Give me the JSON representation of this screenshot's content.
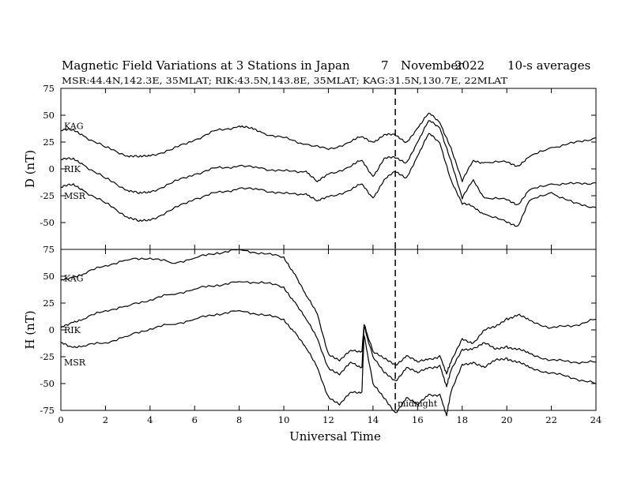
{
  "title": {
    "main": "Magnetic Field Variations at 3 Stations in Japan",
    "day": "7",
    "month": "November",
    "year": "2022",
    "averaging": "10-s averages"
  },
  "subtitle": "MSR:44.4N,142.3E, 35MLAT;  RIK:43.5N,143.8E, 35MLAT;  KAG:31.5N,130.7E, 22MLAT",
  "x_axis": {
    "label": "Universal Time"
  },
  "annotation": {
    "text": "midnight",
    "x": 15
  },
  "chart_data": [
    {
      "type": "line",
      "panel": "D",
      "ylabel": "D (nT)",
      "xlim": [
        0,
        24
      ],
      "ylim": [
        -75,
        75
      ],
      "xticks": [
        0,
        2,
        4,
        6,
        8,
        10,
        12,
        14,
        16,
        18,
        20,
        22,
        24
      ],
      "yticks": [
        75,
        50,
        25,
        0,
        -25,
        -50,
        -75
      ],
      "marker_x": 15,
      "series": [
        {
          "name": "KAG",
          "label_value": 40,
          "x": [
            0,
            0.5,
            1,
            2,
            3,
            3.5,
            4,
            5,
            6,
            7,
            8,
            8.5,
            9,
            10,
            11,
            12,
            13,
            13.5,
            14,
            14.5,
            15,
            15.5,
            16,
            16.5,
            17,
            17.5,
            18,
            18.5,
            19,
            20,
            20.5,
            21,
            22,
            23,
            24
          ],
          "y": [
            36,
            36,
            31,
            20,
            12,
            11,
            12,
            18,
            27,
            36,
            40,
            38,
            34,
            29,
            23,
            18,
            25,
            30,
            25,
            32,
            31,
            25,
            38,
            52,
            43,
            20,
            -12,
            8,
            6,
            6,
            3,
            11,
            20,
            24,
            29
          ]
        },
        {
          "name": "RIK",
          "label_value": 0,
          "x": [
            0,
            0.5,
            1,
            2,
            3,
            3.5,
            4,
            5,
            6,
            7,
            8,
            9,
            10,
            11,
            11.5,
            12,
            13,
            13.5,
            14,
            14.5,
            15,
            15.5,
            16,
            16.5,
            17,
            17.5,
            18,
            18.5,
            19,
            20,
            20.5,
            21,
            22,
            23,
            24
          ],
          "y": [
            9,
            9,
            4,
            -9,
            -20,
            -23,
            -22,
            -13,
            -5,
            1,
            3,
            1,
            -2,
            -2,
            -12,
            -5,
            2,
            8,
            -7,
            10,
            10,
            6,
            25,
            45,
            38,
            8,
            -28,
            -10,
            -27,
            -29,
            -33,
            -20,
            -14,
            -14,
            -13
          ]
        },
        {
          "name": "MSR",
          "label_value": -25,
          "x": [
            0,
            0.5,
            1,
            2,
            3,
            3.5,
            4,
            5,
            6,
            7,
            8,
            9,
            10,
            11,
            11.5,
            12,
            13,
            13.5,
            14,
            14.5,
            15,
            15.5,
            16,
            16.5,
            17,
            17.5,
            18,
            18.5,
            19,
            20,
            20.5,
            21,
            22,
            23,
            24
          ],
          "y": [
            -17,
            -15,
            -20,
            -32,
            -45,
            -49,
            -48,
            -38,
            -28,
            -22,
            -18,
            -19,
            -23,
            -23,
            -30,
            -26,
            -20,
            -14,
            -27,
            -10,
            -3,
            -8,
            12,
            33,
            24,
            -10,
            -33,
            -35,
            -42,
            -50,
            -53,
            -30,
            -22,
            -32,
            -36
          ]
        }
      ]
    },
    {
      "type": "line",
      "panel": "H",
      "ylabel": "H (nT)",
      "xlim": [
        0,
        24
      ],
      "ylim": [
        -75,
        75
      ],
      "xticks": [
        0,
        2,
        4,
        6,
        8,
        10,
        12,
        14,
        16,
        18,
        20,
        22,
        24
      ],
      "yticks": [
        75,
        50,
        25,
        0,
        -25,
        -50,
        -75
      ],
      "marker_x": 15,
      "series": [
        {
          "name": "KAG",
          "label_value": 48,
          "x": [
            0,
            0.5,
            1,
            2,
            3,
            4,
            5,
            6,
            7,
            8,
            9,
            10,
            10.5,
            11,
            11.5,
            12,
            12.5,
            13,
            13.5,
            13.6,
            14,
            14.5,
            15,
            15.5,
            16,
            16.5,
            17,
            17.3,
            17.5,
            18,
            18.5,
            19,
            19.5,
            20,
            20.5,
            21,
            22,
            23,
            24
          ],
          "y": [
            46,
            49,
            52,
            60,
            65,
            67,
            62,
            67,
            72,
            75,
            72,
            68,
            52,
            32,
            15,
            -22,
            -29,
            -19,
            -20,
            5,
            -20,
            -27,
            -32,
            -24,
            -30,
            -27,
            -24,
            -41,
            -30,
            -8,
            -12,
            0,
            3,
            11,
            14,
            9,
            2,
            4,
            10
          ]
        },
        {
          "name": "RIK",
          "label_value": 0,
          "x": [
            0,
            0.5,
            1,
            2,
            3,
            4,
            5,
            6,
            7,
            8,
            9,
            10,
            10.5,
            11,
            11.5,
            12,
            12.5,
            13,
            13.5,
            13.6,
            14,
            14.5,
            15,
            15.5,
            16,
            16.5,
            17,
            17.3,
            17.5,
            18,
            18.5,
            19,
            19.5,
            20,
            20.5,
            21,
            22,
            23,
            24
          ],
          "y": [
            2,
            7,
            10,
            18,
            22,
            28,
            33,
            38,
            42,
            45,
            45,
            40,
            26,
            10,
            -8,
            -35,
            -42,
            -30,
            -35,
            3,
            -25,
            -40,
            -47,
            -35,
            -40,
            -35,
            -33,
            -53,
            -38,
            -18,
            -17,
            -12,
            -18,
            -15,
            -18,
            -22,
            -28,
            -30,
            -30
          ]
        },
        {
          "name": "MSR",
          "label_value": -30,
          "x": [
            0,
            0.5,
            1,
            2,
            3,
            4,
            5,
            6,
            7,
            8,
            9,
            10,
            10.5,
            11,
            11.5,
            12,
            12.5,
            13,
            13.5,
            13.6,
            14,
            14.5,
            15,
            15.5,
            16,
            16.5,
            17,
            17.3,
            17.5,
            18,
            18.5,
            19,
            19.5,
            20,
            20.5,
            21,
            22,
            23,
            24
          ],
          "y": [
            -12,
            -16,
            -15,
            -12,
            -6,
            1,
            5,
            10,
            15,
            18,
            15,
            10,
            -2,
            -17,
            -35,
            -62,
            -70,
            -58,
            -58,
            -5,
            -50,
            -64,
            -77,
            -63,
            -70,
            -60,
            -60,
            -80,
            -58,
            -32,
            -30,
            -35,
            -28,
            -26,
            -30,
            -35,
            -40,
            -45,
            -50
          ]
        }
      ]
    }
  ]
}
